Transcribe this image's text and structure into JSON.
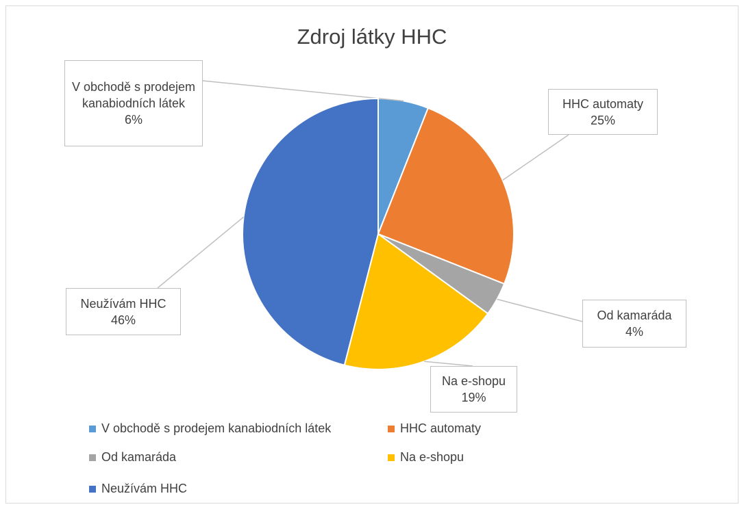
{
  "chart_data": {
    "type": "pie",
    "title": "Zdroj látky HHC",
    "categories": [
      "V obchodě s prodejem kanabiodních látek",
      "HHC automaty",
      "Od kamaráda",
      "Na e-shopu",
      "Neužívám HHC"
    ],
    "values": [
      6,
      25,
      4,
      19,
      46
    ],
    "value_labels": [
      "6%",
      "25%",
      "4%",
      "19%",
      "46%"
    ],
    "colors": [
      "#5b9bd5",
      "#ed7d31",
      "#a5a5a5",
      "#ffc000",
      "#4472c4"
    ],
    "legend": "bottom"
  }
}
